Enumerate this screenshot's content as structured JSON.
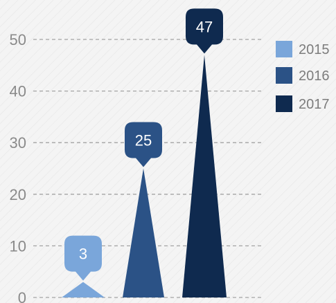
{
  "chart_data": {
    "type": "bar",
    "title": "",
    "xlabel": "",
    "ylabel": "",
    "ylim": [
      0,
      50
    ],
    "yticks": [
      0,
      10,
      20,
      30,
      40,
      50
    ],
    "grid": true,
    "legend_position": "right",
    "data_labels": true,
    "series": [
      {
        "name": "2015",
        "values": [
          3
        ],
        "color": "#7aa6da"
      },
      {
        "name": "2016",
        "values": [
          25
        ],
        "color": "#2b5286"
      },
      {
        "name": "2017",
        "values": [
          47
        ],
        "color": "#0f2a4f"
      }
    ]
  }
}
